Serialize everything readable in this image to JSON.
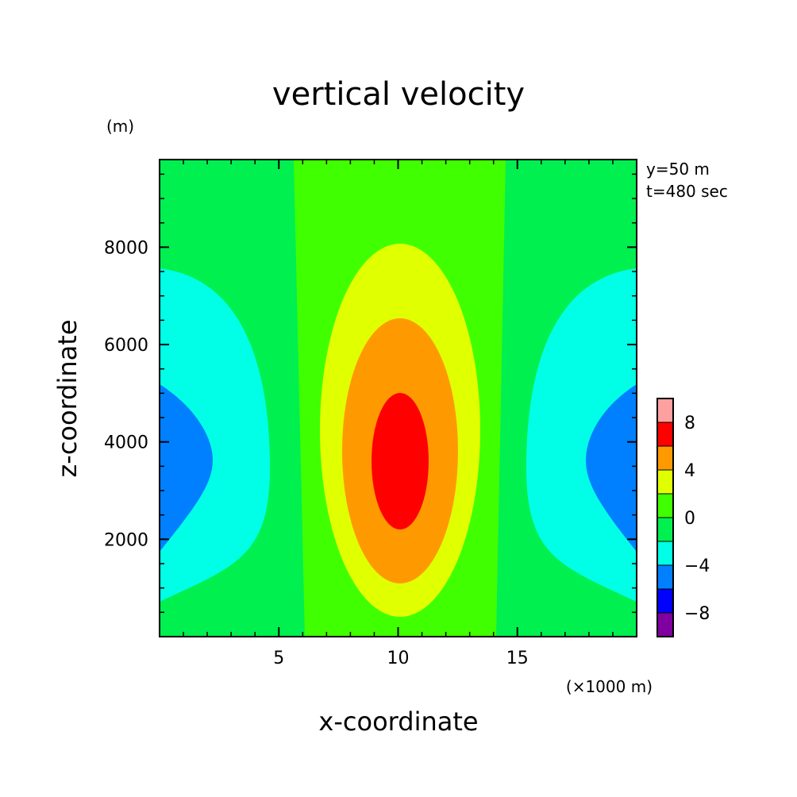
{
  "chart_data": {
    "type": "contour",
    "title": "vertical velocity",
    "xlabel": "x-coordinate",
    "ylabel": "z-coordinate",
    "x_unit": "(×1000 m)",
    "y_unit": "(m)",
    "annotations": [
      "y=50 m",
      "t=480 sec"
    ],
    "xlim": [
      0,
      20
    ],
    "ylim": [
      0,
      9800
    ],
    "x_ticks": [
      {
        "value": 5,
        "label": "5"
      },
      {
        "value": 10,
        "label": "10"
      },
      {
        "value": 15,
        "label": "15"
      }
    ],
    "y_ticks": [
      {
        "value": 2000,
        "label": "2000"
      },
      {
        "value": 4000,
        "label": "4000"
      },
      {
        "value": 6000,
        "label": "6000"
      },
      {
        "value": 8000,
        "label": "8000"
      }
    ],
    "colorbar": {
      "levels": [
        {
          "min": -10,
          "max": -8,
          "color": "#8000a0"
        },
        {
          "min": -8,
          "max": -6,
          "color": "#0000ff"
        },
        {
          "min": -6,
          "max": -4,
          "color": "#0080ff"
        },
        {
          "min": -4,
          "max": -2,
          "color": "#00ffe6"
        },
        {
          "min": -2,
          "max": 0,
          "color": "#00f050"
        },
        {
          "min": 0,
          "max": 2,
          "color": "#40ff00"
        },
        {
          "min": 2,
          "max": 4,
          "color": "#e0ff00"
        },
        {
          "min": 4,
          "max": 6,
          "color": "#ff9900"
        },
        {
          "min": 6,
          "max": 8,
          "color": "#ff0000"
        },
        {
          "min": 8,
          "max": 10,
          "color": "#ffa0a0"
        }
      ],
      "tick_labels": [
        {
          "value": 8,
          "label": "8"
        },
        {
          "value": 4,
          "label": "4"
        },
        {
          "value": 0,
          "label": "0"
        },
        {
          "value": -4,
          "label": "−4"
        },
        {
          "value": -8,
          "label": "−8"
        }
      ]
    }
  }
}
